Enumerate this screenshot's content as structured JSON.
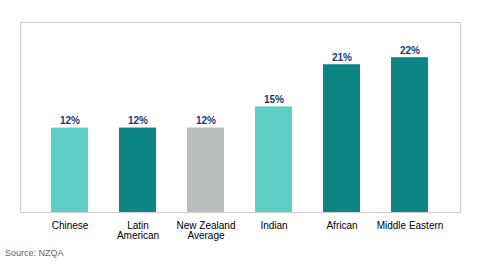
{
  "chart_data": {
    "type": "bar",
    "categories": [
      "Chinese",
      "Latin\nAmerican",
      "New Zealand\nAverage",
      "Indian",
      "African",
      "Middle Eastern"
    ],
    "values": [
      12,
      12,
      12,
      15,
      21,
      22
    ],
    "value_labels": [
      "12%",
      "12%",
      "12%",
      "15%",
      "21%",
      "22%"
    ],
    "colors": [
      "#5ecfc6",
      "#0e8585",
      "#b8bcbc",
      "#5ecfc6",
      "#0e8585",
      "#0e8585"
    ],
    "ylim": [
      0,
      27
    ],
    "data_labels": true,
    "tick_labels": "x",
    "grid": false,
    "annotations": [
      "Source: NZQA"
    ]
  }
}
